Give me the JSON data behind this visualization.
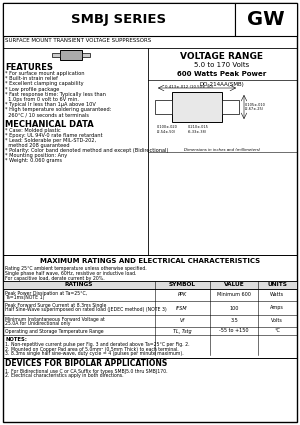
{
  "title": "SMBJ SERIES",
  "subtitle": "SURFACE MOUNT TRANSIENT VOLTAGE SUPPRESSORS",
  "logo": "GW",
  "voltage_range_title": "VOLTAGE RANGE",
  "voltage_range": "5.0 to 170 Volts",
  "power": "600 Watts Peak Power",
  "features_title": "FEATURES",
  "features": [
    "* For surface mount application",
    "* Built-in strain relief",
    "* Excellent clamping capability",
    "* Low profile package",
    "* Fast response time: Typically less than",
    "  1.0ps from 0 volt to 6V min.",
    "* Typical Ir less than 1μA above 10V",
    "* High temperature soldering guaranteed:",
    "  260°C / 10 seconds at terminals"
  ],
  "mech_title": "MECHANICAL DATA",
  "mech": [
    "* Case: Molded plastic",
    "* Epoxy: UL 94V-0 rate flame retardant",
    "* Lead: Solderable per MIL-STD-202,",
    "  method 208 guaranteed",
    "* Polarity: Color band denoted method and except (Bidirectional)",
    "* Mounting position: Any",
    "* Weight: 0.060 grams"
  ],
  "package": "DO-214AA(SMB)",
  "ratings_title": "MAXIMUM RATINGS AND ELECTRICAL CHARACTERISTICS",
  "ratings_note1": "Rating 25°C ambient temperature unless otherwise specified.",
  "ratings_note2": "Single phase half wave, 60Hz, resistive or inductive load.",
  "ratings_note3": "For capacitive load, derate current by 20%.",
  "table_headers": [
    "RATINGS",
    "SYMBOL",
    "VALUE",
    "UNITS"
  ],
  "table_rows": [
    [
      "Peak Power Dissipation at Ta=25°C, Ta=1ms(NOTE 1)",
      "PPK",
      "Minimum 600",
      "Watts"
    ],
    [
      "Peak Forward Surge Current at 8.3ms Single Half Sine-Wave superimposed on rated load (JEDEC method) (NOTE 3)",
      "IFSM",
      "100",
      "Amps"
    ],
    [
      "Minimum Instantaneous Forward Voltage at 25.0A for Unidirectional only",
      "Vf",
      "3.5",
      "Volts"
    ],
    [
      "Operating and Storage Temperature Range",
      "TL, Tstg",
      "-55 to +150",
      "°C"
    ]
  ],
  "notes_title": "NOTES:",
  "notes": [
    "1. Non-repetitive current pulse per Fig. 3 and derated above Ta=25°C per Fig. 2.",
    "2. Mounted on Copper Pad area of 5.0mm² (0.5mm Thick) to each terminal.",
    "3. 8.3ms single half sine-wave, duty cycle = 4 (pulses per minute maximum)."
  ],
  "bipolar_title": "DEVICES FOR BIPOLAR APPLICATIONS",
  "bipolar": [
    "1. For Bidirectional use C or CA Suffix for types SMBJ5.0 thru SMBJ170.",
    "2. Electrical characteristics apply in both directions."
  ],
  "bg_color": "#ffffff"
}
